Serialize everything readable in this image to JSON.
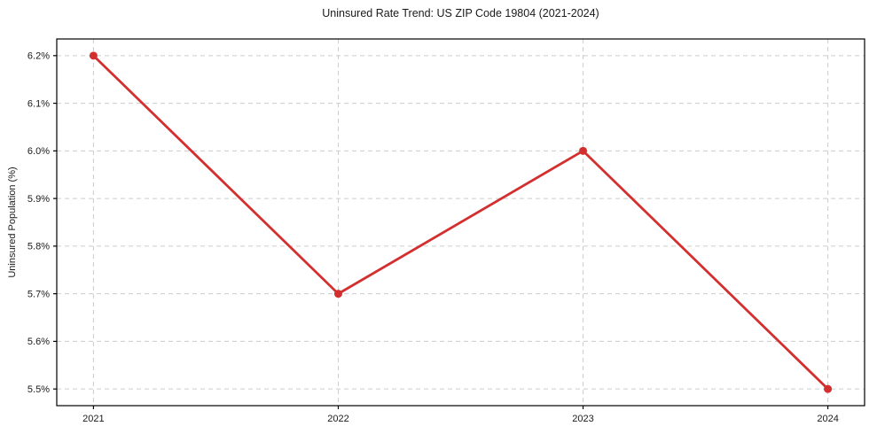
{
  "figure": {
    "background": "#ffffff"
  },
  "chart_data": {
    "type": "line",
    "title": "Uninsured Rate Trend: US ZIP Code 19804 (2021-2024)",
    "xlabel": "",
    "ylabel": "Uninsured Population (%)",
    "x": [
      2021,
      2022,
      2023,
      2024
    ],
    "y": [
      6.2,
      5.7,
      6.0,
      5.5
    ],
    "x_tick_labels": [
      "2021",
      "2022",
      "2023",
      "2024"
    ],
    "y_ticks": [
      5.5,
      5.6,
      5.7,
      5.8,
      5.9,
      6.0,
      6.1,
      6.2
    ],
    "y_tick_labels": [
      "5.5%",
      "5.6%",
      "5.7%",
      "5.8%",
      "5.9%",
      "6.0%",
      "6.1%",
      "6.2%"
    ],
    "xlim": [
      2020.85,
      2024.15
    ],
    "ylim": [
      5.465,
      6.235
    ],
    "grid": true,
    "grid_style": "dashed",
    "legend": "none",
    "line_color": "#d32f2f",
    "marker": "circle",
    "grid_color": "#cccccc",
    "axis_color": "#000000",
    "tick_color": "#000000",
    "text_color": "#1a1a1a"
  }
}
